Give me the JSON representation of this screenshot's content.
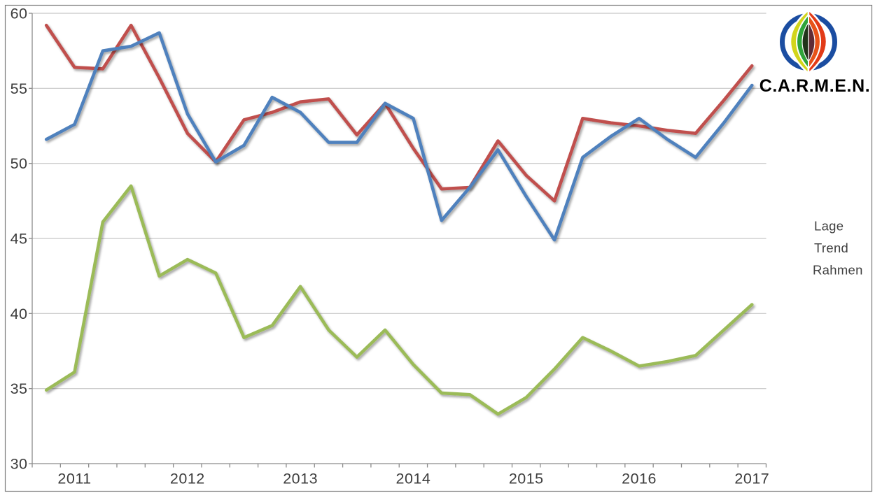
{
  "logo": {
    "text": "C.A.R.M.E.N."
  },
  "legend": {
    "position": "right",
    "items": [
      {
        "label": "Lage",
        "color": "#4F81BD"
      },
      {
        "label": "Trend",
        "color": "#C0504D"
      },
      {
        "label": "Rahmen",
        "color": "#9BBB59"
      }
    ]
  },
  "colors": {
    "background": "#FFFFFF",
    "gridline": "#C6C6C6",
    "axis": "#8C8C8C",
    "tick_text": "#3D3D3D",
    "outer_border": "#7A7A7A",
    "series_blue": "#4F81BD",
    "series_red": "#C0504D",
    "series_green": "#9BBB59",
    "logo_ring_blue": "#1B4DA1",
    "logo_yellow": "#D2D51C",
    "logo_green": "#2FA43A",
    "logo_dark_green": "#20331A",
    "logo_red": "#E23A17",
    "logo_orange": "#E7531A",
    "logo_maroon": "#5F2B36"
  },
  "chart_data": {
    "type": "line",
    "title": "",
    "xlabel": "",
    "ylabel": "",
    "ylim": [
      30,
      60
    ],
    "ytick_step": 5,
    "grid": true,
    "legend_position": "right",
    "ytick_labels": [
      "60",
      "55",
      "50",
      "45",
      "40",
      "35",
      "30"
    ],
    "x_tick_labels": [
      "2011",
      "2012",
      "2013",
      "2014",
      "2015",
      "2016",
      "2017"
    ],
    "x": [
      "2010-Q4",
      "2011-Q1",
      "2011-Q2",
      "2011-Q3",
      "2011-Q4",
      "2012-Q1",
      "2012-Q2",
      "2012-Q3",
      "2012-Q4",
      "2013-Q1",
      "2013-Q2",
      "2013-Q3",
      "2013-Q4",
      "2014-Q1",
      "2014-Q2",
      "2014-Q3",
      "2014-Q4",
      "2015-Q1",
      "2015-Q2",
      "2015-Q3",
      "2015-Q4",
      "2016-Q1",
      "2016-Q2",
      "2016-Q3",
      "2016-Q4",
      "2017-Q1"
    ],
    "series": [
      {
        "name": "Lage",
        "color": "#4F81BD",
        "values": [
          51.6,
          52.6,
          57.5,
          57.8,
          58.7,
          53.3,
          50.1,
          51.2,
          54.4,
          53.4,
          51.4,
          51.4,
          54.0,
          53.0,
          46.2,
          48.4,
          50.9,
          47.8,
          44.9,
          50.4,
          51.8,
          53.0,
          51.6,
          50.4,
          52.7,
          55.2
        ]
      },
      {
        "name": "Trend",
        "color": "#C0504D",
        "values": [
          59.2,
          56.4,
          56.3,
          59.2,
          55.7,
          52.0,
          50.1,
          52.9,
          53.4,
          54.1,
          54.3,
          51.9,
          54.0,
          51.0,
          48.3,
          48.4,
          51.5,
          49.2,
          47.5,
          53.0,
          52.7,
          52.5,
          52.2,
          52.0,
          54.2,
          56.5
        ]
      },
      {
        "name": "Rahmen",
        "color": "#9BBB59",
        "values": [
          34.9,
          36.1,
          46.1,
          48.5,
          42.5,
          43.6,
          42.7,
          38.4,
          39.2,
          41.8,
          38.9,
          37.1,
          38.9,
          36.6,
          34.7,
          34.6,
          33.3,
          34.4,
          36.3,
          38.4,
          37.5,
          36.5,
          36.8,
          37.2,
          38.9,
          40.6
        ]
      }
    ]
  }
}
